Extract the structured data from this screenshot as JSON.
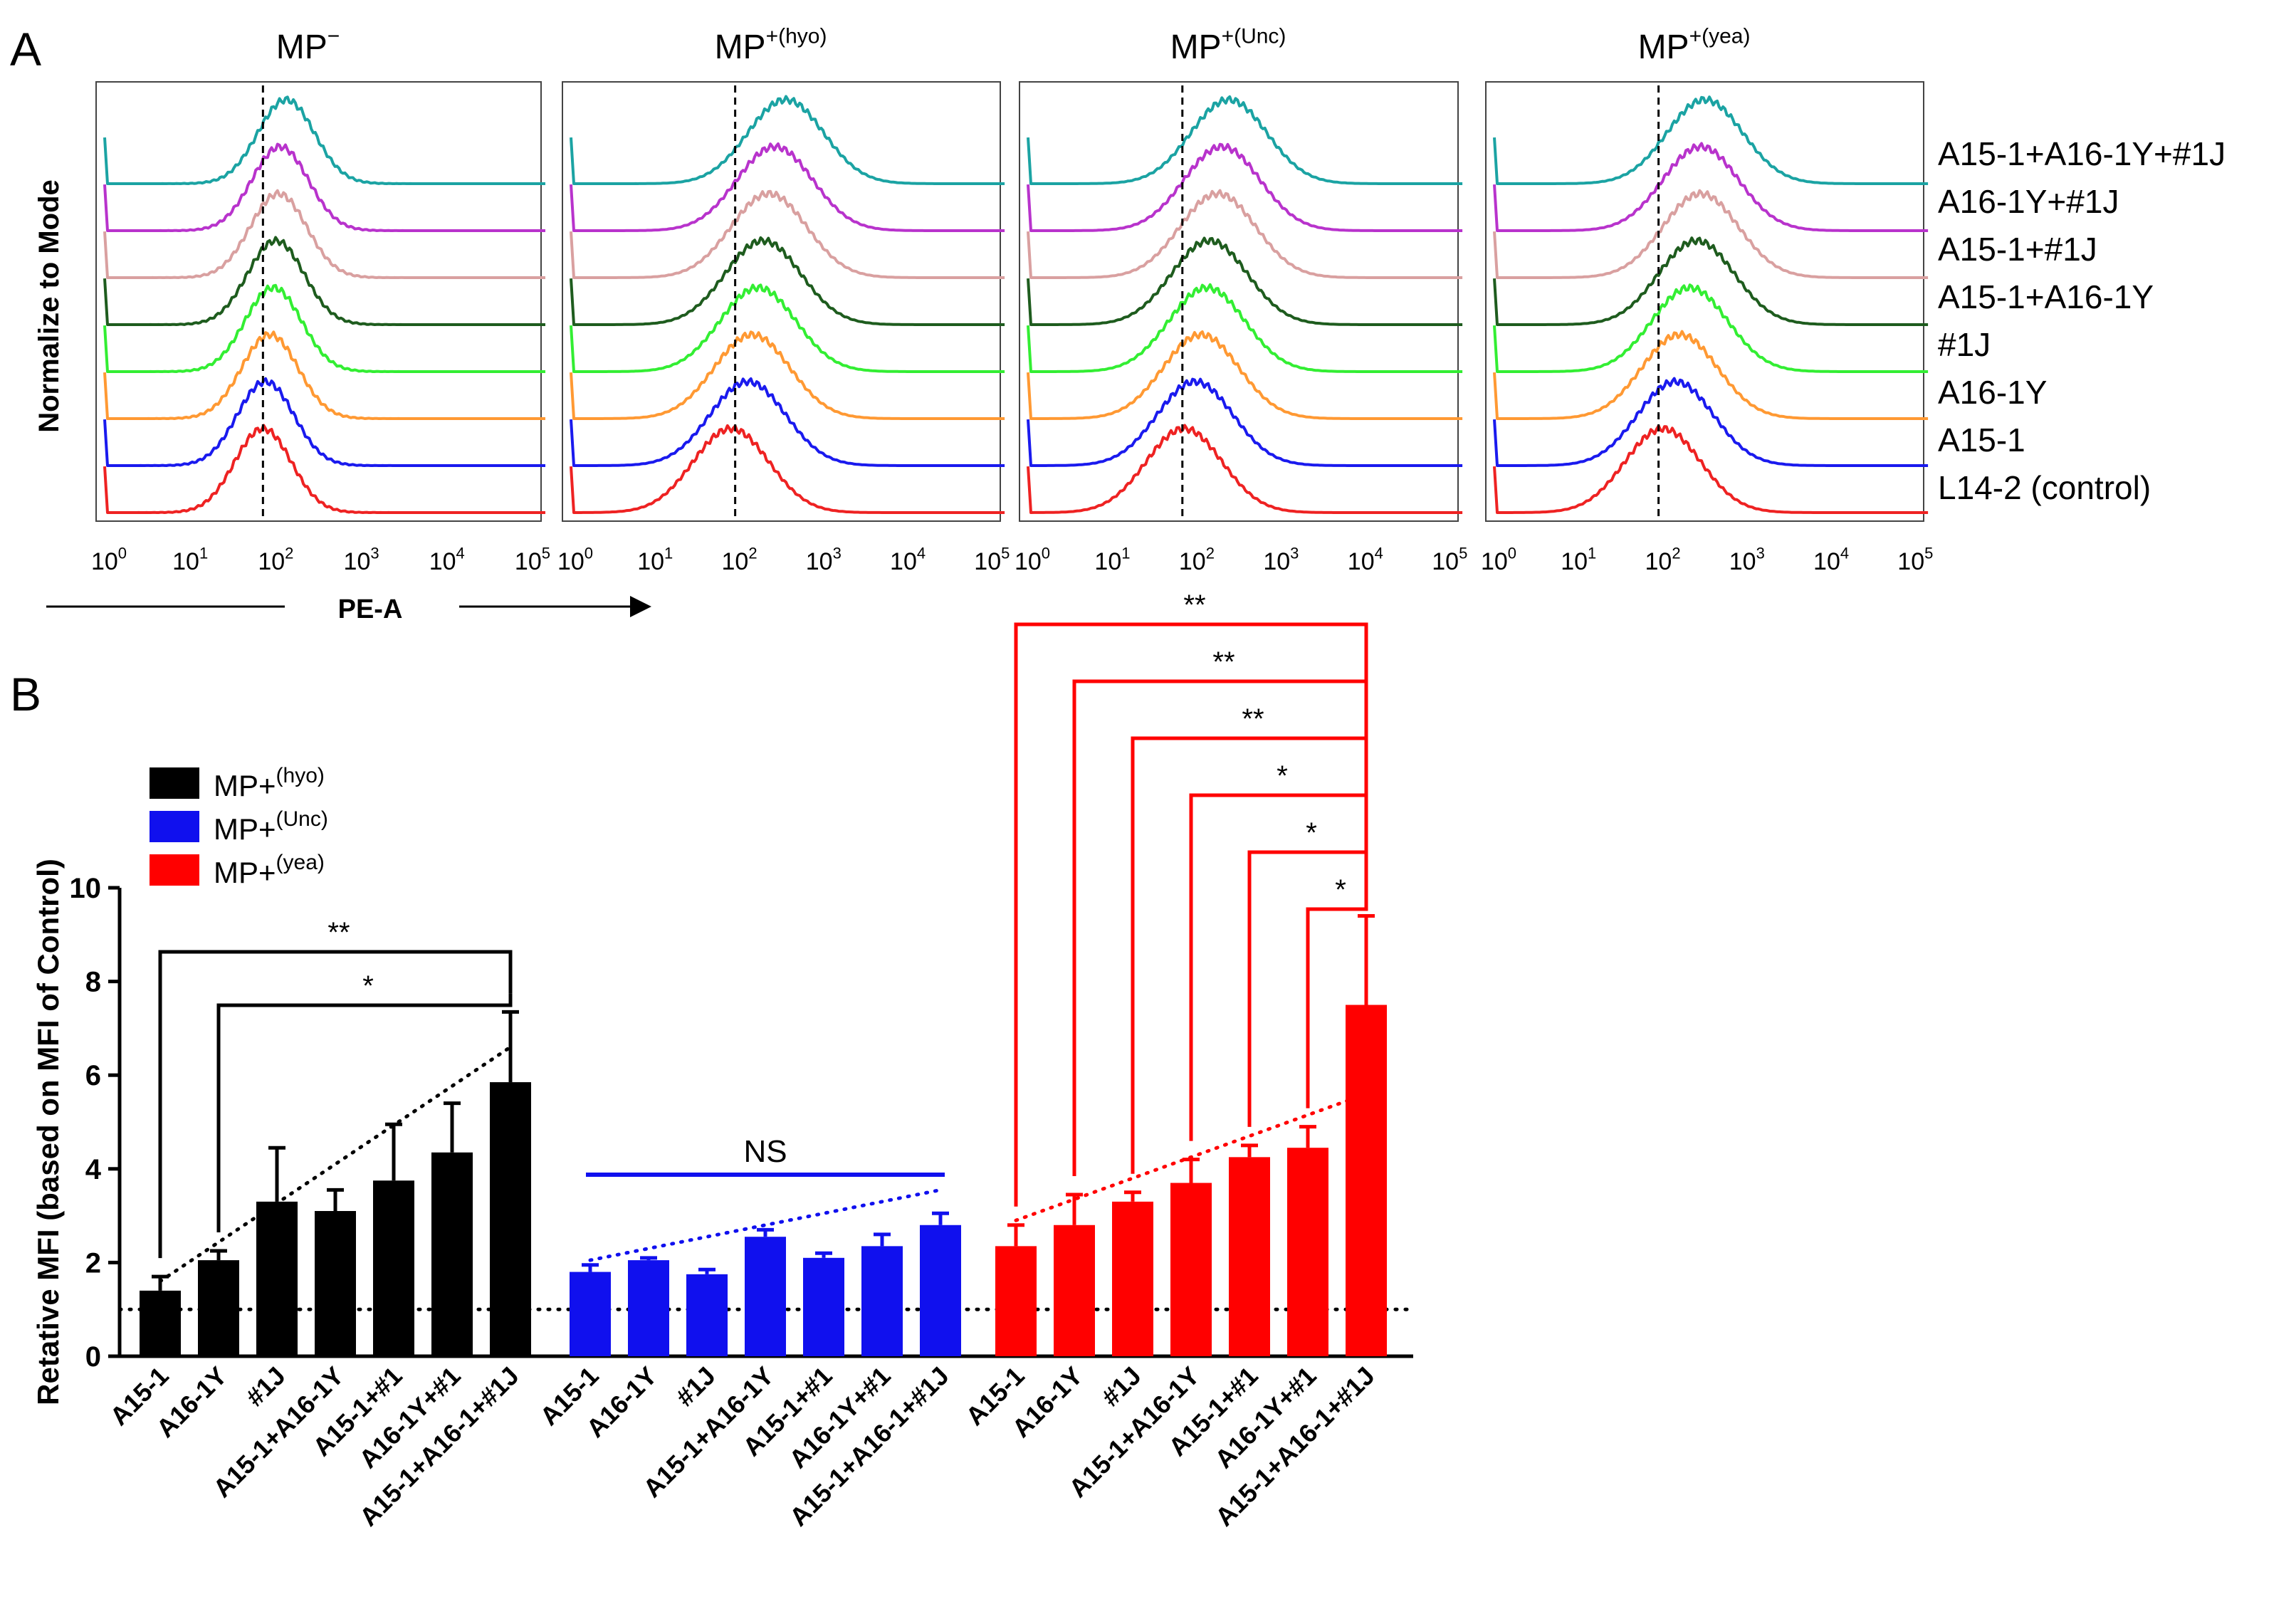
{
  "panel_a": {
    "letter": "A",
    "ylabel": "Normalize  to Mode",
    "xlabel": "PE-A",
    "titles": [
      {
        "main": "MP",
        "sup": "−"
      },
      {
        "main": "MP",
        "sup": "+(hyo)"
      },
      {
        "main": "MP",
        "sup": "+(Unc)"
      },
      {
        "main": "MP",
        "sup": "+(yea)"
      }
    ],
    "tick_base": "10",
    "tick_exps": [
      "0",
      "1",
      "2",
      "3",
      "4",
      "5"
    ],
    "legend": [
      "A15-1+A16-1Y+#1J",
      "A16-1Y+#1J",
      "A15-1+#1J",
      "A15-1+A16-1Y",
      "#1J",
      "A16-1Y",
      "A15-1",
      "L14-2 (control)"
    ],
    "colors": [
      "#1ba3a3",
      "#b833cc",
      "#d9a0a0",
      "#1e5c1e",
      "#33ee33",
      "#ff9933",
      "#1a1aee",
      "#ee2222"
    ],
    "peaks": [
      [
        2.12,
        2.05,
        2.03,
        2.0,
        1.97,
        1.93,
        1.88,
        1.85
      ],
      [
        2.55,
        2.42,
        2.35,
        2.28,
        2.22,
        2.15,
        2.1,
        1.9
      ],
      [
        2.38,
        2.3,
        2.25,
        2.15,
        2.12,
        2.05,
        1.98,
        1.85
      ],
      [
        2.5,
        2.45,
        2.45,
        2.4,
        2.32,
        2.2,
        2.15,
        2.0
      ]
    ]
  },
  "panel_b": {
    "letter": "B",
    "ylabel": "Retative MFI (based on MFI of Control)",
    "legend": [
      {
        "main": "MP+",
        "sup": "(hyo)",
        "color": "#000000"
      },
      {
        "main": "MP+",
        "sup": "(Unc)",
        "color": "#1010ee"
      },
      {
        "main": "MP+",
        "sup": "(yea)",
        "color": "#ff0000"
      }
    ],
    "ns_label": "NS"
  },
  "chart_data": {
    "type": "bar",
    "title": "",
    "xlabel": "",
    "ylabel": "Retative MFI (based on MFI of Control)",
    "ylim": [
      0,
      10
    ],
    "yticks": [
      "0",
      "2",
      "4",
      "6",
      "8",
      "10"
    ],
    "baseline": 1,
    "groups": [
      {
        "name": "MP+(hyo)",
        "color": "#000000",
        "categories": [
          "A15-1",
          "A16-1Y",
          "#1J",
          "A15-1+A16-1Y",
          "A15-1+#1",
          "A16-1Y+#1",
          "A15-1+A16-1+#1J"
        ],
        "values": [
          1.4,
          2.05,
          3.3,
          3.1,
          3.75,
          4.35,
          5.85
        ],
        "errors": [
          0.3,
          0.2,
          1.15,
          0.45,
          1.2,
          1.05,
          1.5
        ],
        "trend": [
          1.6,
          6.6
        ],
        "comparisons": [
          {
            "from": 0,
            "to": 6,
            "label": "**"
          },
          {
            "from": 1,
            "to": 6,
            "label": "*"
          }
        ]
      },
      {
        "name": "MP+(Unc)",
        "color": "#1010ee",
        "categories": [
          "A15-1",
          "A16-1Y",
          "#1J",
          "A15-1+A16-1Y",
          "A15-1+#1",
          "A16-1Y+#1",
          "A15-1+A16-1+#1J"
        ],
        "values": [
          1.8,
          2.05,
          1.75,
          2.55,
          2.1,
          2.35,
          2.8
        ],
        "errors": [
          0.15,
          0.05,
          0.1,
          0.15,
          0.1,
          0.25,
          0.25
        ],
        "trend": [
          2.05,
          3.55
        ],
        "comparisons": []
      },
      {
        "name": "MP+(yea)",
        "color": "#ff0000",
        "categories": [
          "A15-1",
          "A16-1Y",
          "#1J",
          "A15-1+A16-1Y",
          "A15-1+#1",
          "A16-1Y+#1",
          "A15-1+A16-1+#1J"
        ],
        "values": [
          2.35,
          2.8,
          3.3,
          3.7,
          4.25,
          4.45,
          7.5
        ],
        "errors": [
          0.45,
          0.65,
          0.2,
          0.5,
          0.25,
          0.45,
          1.9
        ],
        "trend": [
          2.9,
          5.6
        ],
        "comparisons": [
          {
            "from": 0,
            "to": 6,
            "label": "**"
          },
          {
            "from": 1,
            "to": 6,
            "label": "**"
          },
          {
            "from": 2,
            "to": 6,
            "label": "**"
          },
          {
            "from": 3,
            "to": 6,
            "label": "*"
          },
          {
            "from": 4,
            "to": 6,
            "label": "*"
          },
          {
            "from": 5,
            "to": 6,
            "label": "*"
          }
        ]
      }
    ]
  }
}
